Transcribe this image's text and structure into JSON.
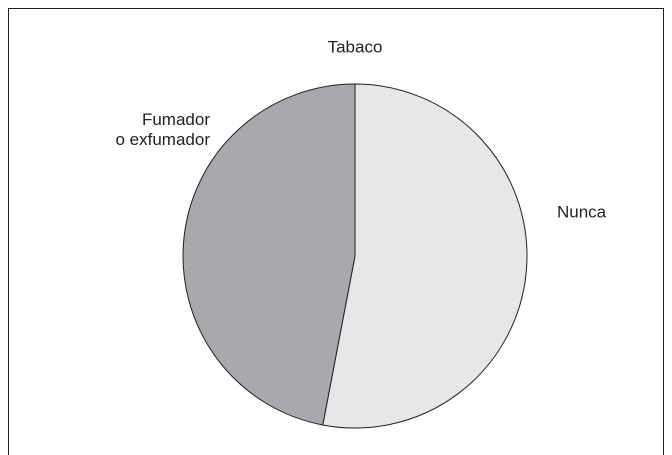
{
  "chart_data": {
    "type": "pie",
    "title": "Tabaco",
    "categories": [
      "Nunca",
      "Fumador\no exfumador"
    ],
    "values": [
      53,
      47
    ],
    "colors": [
      "#e6e7e8",
      "#a7a9ac"
    ]
  }
}
